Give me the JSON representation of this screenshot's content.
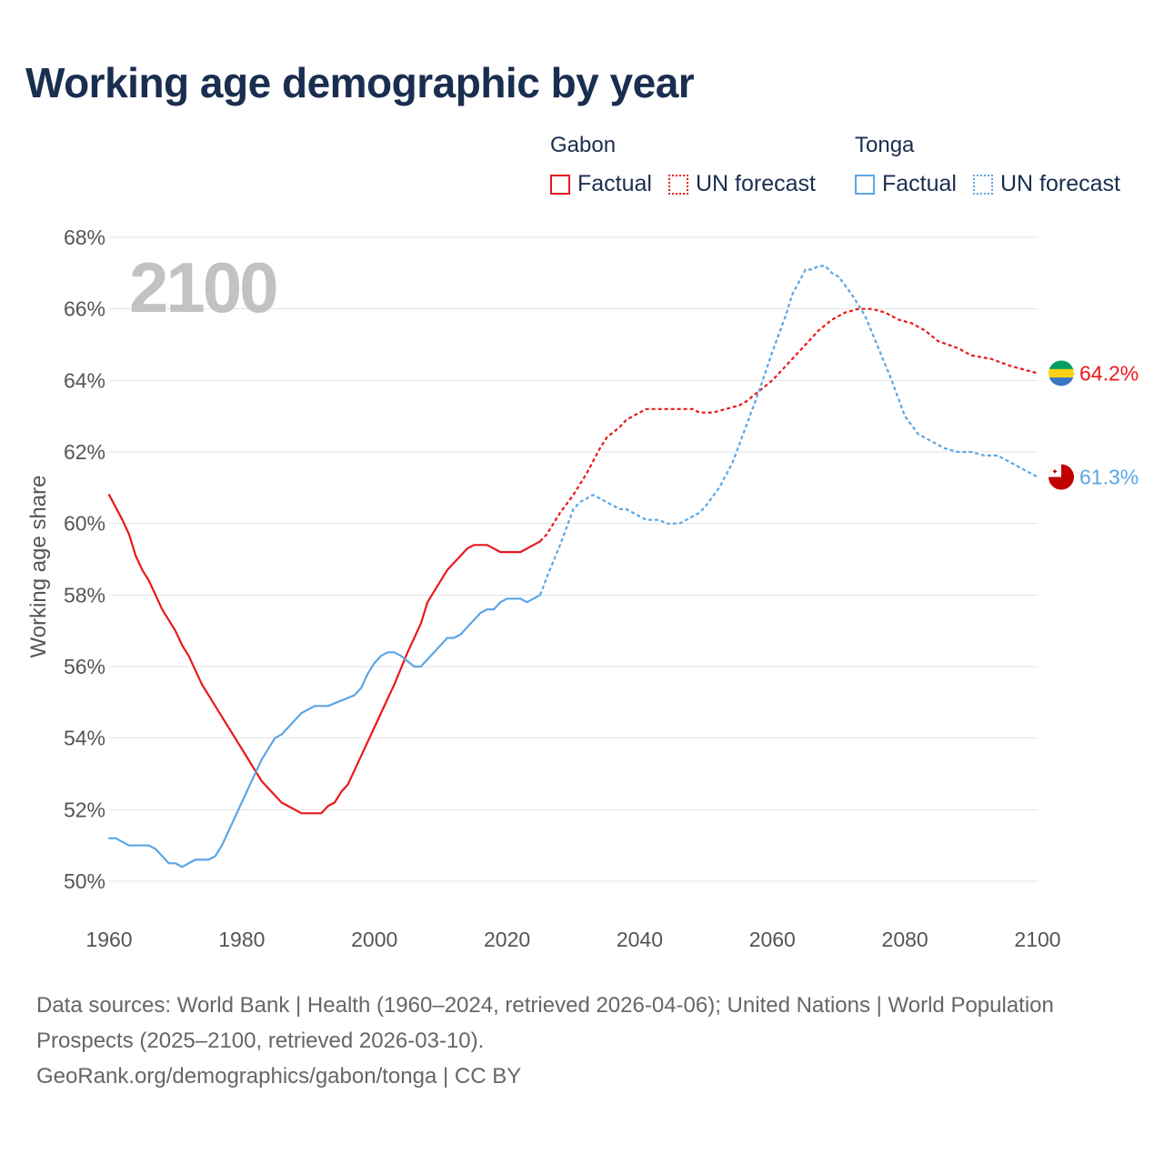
{
  "title": "Working age demographic by year",
  "year_badge": "2100",
  "legend": {
    "groups": [
      {
        "country": "Gabon",
        "color": "#e8191c",
        "items": [
          {
            "label": "Factual",
            "style": "solid"
          },
          {
            "label": "UN forecast",
            "style": "dotted"
          }
        ]
      },
      {
        "country": "Tonga",
        "color": "#5aa6e6",
        "items": [
          {
            "label": "Factual",
            "style": "solid"
          },
          {
            "label": "UN forecast",
            "style": "dotted"
          }
        ]
      }
    ]
  },
  "sources": {
    "line1": "Data sources: World Bank | Health (1960–2024, retrieved 2026-04-06); United Nations | World Population Prospects (2025–2100, retrieved 2026-03-10).",
    "line2": "GeoRank.org/demographics/gabon/tonga | CC BY"
  },
  "chart_data": {
    "type": "line",
    "title": "Working age demographic by year",
    "xlabel": "",
    "ylabel": "Working age share",
    "xlim": [
      1960,
      2100
    ],
    "ylim": [
      50,
      68
    ],
    "x_ticks": [
      1960,
      1980,
      2000,
      2020,
      2040,
      2060,
      2080,
      2100
    ],
    "y_ticks": [
      50,
      52,
      54,
      56,
      58,
      60,
      62,
      64,
      66,
      68
    ],
    "y_tick_labels": [
      "50%",
      "52%",
      "54%",
      "56%",
      "58%",
      "60%",
      "62%",
      "64%",
      "66%",
      "68%"
    ],
    "grid": true,
    "factual_end_year": 2024,
    "series": [
      {
        "name": "Gabon",
        "color": "#e8191c",
        "flag": [
          "#009e60",
          "#fcd116",
          "#3a75c4"
        ],
        "end_label": "64.2%",
        "points": [
          [
            1960,
            60.8
          ],
          [
            1962,
            60.1
          ],
          [
            1963,
            59.7
          ],
          [
            1964,
            59.1
          ],
          [
            1965,
            58.7
          ],
          [
            1966,
            58.4
          ],
          [
            1967,
            58.0
          ],
          [
            1968,
            57.6
          ],
          [
            1970,
            57.0
          ],
          [
            1971,
            56.6
          ],
          [
            1972,
            56.3
          ],
          [
            1974,
            55.5
          ],
          [
            1976,
            54.9
          ],
          [
            1978,
            54.3
          ],
          [
            1980,
            53.7
          ],
          [
            1982,
            53.1
          ],
          [
            1983,
            52.8
          ],
          [
            1986,
            52.2
          ],
          [
            1989,
            51.9
          ],
          [
            1992,
            51.9
          ],
          [
            1993,
            52.1
          ],
          [
            1994,
            52.2
          ],
          [
            1995,
            52.5
          ],
          [
            1996,
            52.7
          ],
          [
            1998,
            53.5
          ],
          [
            2000,
            54.3
          ],
          [
            2002,
            55.1
          ],
          [
            2003,
            55.5
          ],
          [
            2005,
            56.4
          ],
          [
            2007,
            57.2
          ],
          [
            2008,
            57.8
          ],
          [
            2010,
            58.4
          ],
          [
            2011,
            58.7
          ],
          [
            2013,
            59.1
          ],
          [
            2014,
            59.3
          ],
          [
            2015,
            59.4
          ],
          [
            2017,
            59.4
          ],
          [
            2019,
            59.2
          ],
          [
            2022,
            59.2
          ],
          [
            2024,
            59.4
          ],
          [
            2025,
            59.5
          ],
          [
            2026,
            59.7
          ],
          [
            2028,
            60.3
          ],
          [
            2030,
            60.8
          ],
          [
            2032,
            61.4
          ],
          [
            2034,
            62.1
          ],
          [
            2035,
            62.4
          ],
          [
            2037,
            62.7
          ],
          [
            2038,
            62.9
          ],
          [
            2040,
            63.1
          ],
          [
            2041,
            63.2
          ],
          [
            2044,
            63.2
          ],
          [
            2048,
            63.2
          ],
          [
            2049,
            63.1
          ],
          [
            2051,
            63.1
          ],
          [
            2053,
            63.2
          ],
          [
            2055,
            63.3
          ],
          [
            2056,
            63.4
          ],
          [
            2058,
            63.7
          ],
          [
            2060,
            64.0
          ],
          [
            2061,
            64.2
          ],
          [
            2063,
            64.6
          ],
          [
            2065,
            65.0
          ],
          [
            2067,
            65.4
          ],
          [
            2069,
            65.7
          ],
          [
            2071,
            65.9
          ],
          [
            2073,
            66.0
          ],
          [
            2075,
            66.0
          ],
          [
            2077,
            65.9
          ],
          [
            2079,
            65.7
          ],
          [
            2081,
            65.6
          ],
          [
            2083,
            65.4
          ],
          [
            2085,
            65.1
          ],
          [
            2088,
            64.9
          ],
          [
            2090,
            64.7
          ],
          [
            2093,
            64.6
          ],
          [
            2096,
            64.4
          ],
          [
            2098,
            64.3
          ],
          [
            2100,
            64.2
          ]
        ]
      },
      {
        "name": "Tonga",
        "color": "#5aa6e6",
        "flag": [
          "#c10000",
          "#ffffff"
        ],
        "end_label": "61.3%",
        "points": [
          [
            1960,
            51.2
          ],
          [
            1961,
            51.2
          ],
          [
            1963,
            51.0
          ],
          [
            1966,
            51.0
          ],
          [
            1967,
            50.9
          ],
          [
            1969,
            50.5
          ],
          [
            1970,
            50.5
          ],
          [
            1971,
            50.4
          ],
          [
            1973,
            50.6
          ],
          [
            1975,
            50.6
          ],
          [
            1976,
            50.7
          ],
          [
            1977,
            51.0
          ],
          [
            1979,
            51.8
          ],
          [
            1981,
            52.6
          ],
          [
            1983,
            53.4
          ],
          [
            1985,
            54.0
          ],
          [
            1986,
            54.1
          ],
          [
            1989,
            54.7
          ],
          [
            1991,
            54.9
          ],
          [
            1993,
            54.9
          ],
          [
            1997,
            55.2
          ],
          [
            1998,
            55.4
          ],
          [
            1999,
            55.8
          ],
          [
            2000,
            56.1
          ],
          [
            2001,
            56.3
          ],
          [
            2002,
            56.4
          ],
          [
            2003,
            56.4
          ],
          [
            2004,
            56.3
          ],
          [
            2006,
            56.0
          ],
          [
            2007,
            56.0
          ],
          [
            2010,
            56.6
          ],
          [
            2011,
            56.8
          ],
          [
            2012,
            56.8
          ],
          [
            2013,
            56.9
          ],
          [
            2016,
            57.5
          ],
          [
            2017,
            57.6
          ],
          [
            2018,
            57.6
          ],
          [
            2019,
            57.8
          ],
          [
            2020,
            57.9
          ],
          [
            2022,
            57.9
          ],
          [
            2023,
            57.8
          ],
          [
            2025,
            58.0
          ],
          [
            2026,
            58.5
          ],
          [
            2028,
            59.4
          ],
          [
            2030,
            60.4
          ],
          [
            2031,
            60.6
          ],
          [
            2033,
            60.8
          ],
          [
            2035,
            60.6
          ],
          [
            2037,
            60.4
          ],
          [
            2038,
            60.4
          ],
          [
            2040,
            60.2
          ],
          [
            2041,
            60.1
          ],
          [
            2043,
            60.1
          ],
          [
            2044,
            60.0
          ],
          [
            2046,
            60.0
          ],
          [
            2048,
            60.2
          ],
          [
            2049,
            60.3
          ],
          [
            2050,
            60.5
          ],
          [
            2052,
            61.0
          ],
          [
            2054,
            61.7
          ],
          [
            2056,
            62.7
          ],
          [
            2058,
            63.7
          ],
          [
            2060,
            64.8
          ],
          [
            2062,
            65.8
          ],
          [
            2063,
            66.4
          ],
          [
            2065,
            67.1
          ],
          [
            2066,
            67.1
          ],
          [
            2067,
            67.2
          ],
          [
            2068,
            67.2
          ],
          [
            2069,
            67.0
          ],
          [
            2070,
            66.9
          ],
          [
            2072,
            66.4
          ],
          [
            2074,
            65.8
          ],
          [
            2076,
            64.9
          ],
          [
            2078,
            64.0
          ],
          [
            2080,
            63.0
          ],
          [
            2082,
            62.5
          ],
          [
            2084,
            62.3
          ],
          [
            2086,
            62.1
          ],
          [
            2088,
            62.0
          ],
          [
            2090,
            62.0
          ],
          [
            2092,
            61.9
          ],
          [
            2094,
            61.9
          ],
          [
            2096,
            61.7
          ],
          [
            2098,
            61.5
          ],
          [
            2100,
            61.3
          ]
        ]
      }
    ]
  }
}
